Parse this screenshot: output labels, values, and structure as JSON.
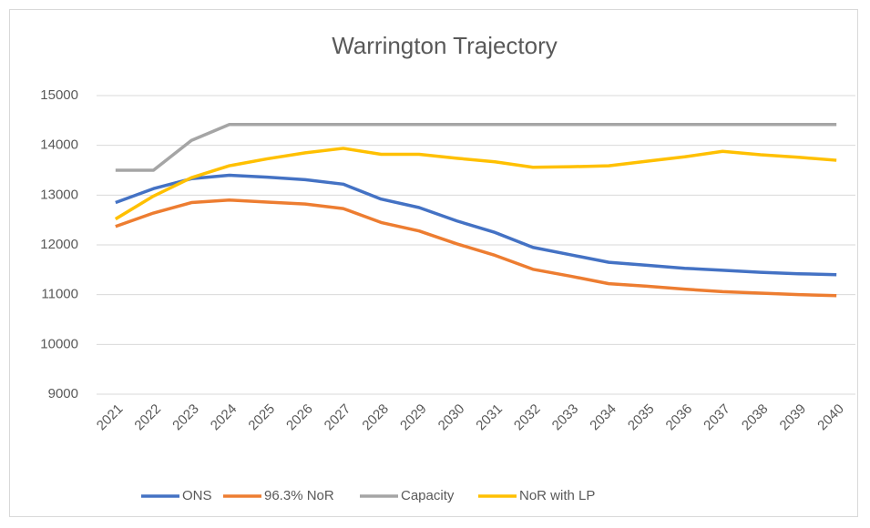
{
  "chart_data": {
    "type": "line",
    "title": "Warrington Trajectory",
    "categories": [
      "2021",
      "2022",
      "2023",
      "2024",
      "2025",
      "2026",
      "2027",
      "2028",
      "2029",
      "2030",
      "2031",
      "2032",
      "2033",
      "2034",
      "2035",
      "2036",
      "2037",
      "2038",
      "2039",
      "2040"
    ],
    "series": [
      {
        "name": "ONS",
        "color": "#4472c4",
        "values": [
          12850,
          13130,
          13330,
          13400,
          13360,
          13310,
          13220,
          12920,
          12750,
          12480,
          12250,
          11950,
          11800,
          11650,
          11590,
          11530,
          11490,
          11450,
          11420,
          11400
        ]
      },
      {
        "name": "96.3% NoR",
        "color": "#ed7d31",
        "values": [
          12370,
          12640,
          12850,
          12900,
          12860,
          12820,
          12730,
          12450,
          12280,
          12020,
          11790,
          11510,
          11370,
          11220,
          11170,
          11110,
          11060,
          11030,
          11000,
          10980
        ]
      },
      {
        "name": "Capacity",
        "color": "#a5a5a5",
        "values": [
          13500,
          13500,
          14100,
          14420,
          14420,
          14420,
          14420,
          14420,
          14420,
          14420,
          14420,
          14420,
          14420,
          14420,
          14420,
          14420,
          14420,
          14420,
          14420,
          14420
        ]
      },
      {
        "name": "NoR with LP",
        "color": "#ffc000",
        "values": [
          12520,
          12980,
          13350,
          13590,
          13730,
          13850,
          13940,
          13820,
          13820,
          13740,
          13670,
          13560,
          13570,
          13590,
          13680,
          13770,
          13880,
          13810,
          13760,
          13700
        ]
      }
    ],
    "ylim": [
      9000,
      15000
    ],
    "yticks": [
      9000,
      10000,
      11000,
      12000,
      13000,
      14000,
      15000
    ],
    "grid": true,
    "legend": "bottom"
  }
}
